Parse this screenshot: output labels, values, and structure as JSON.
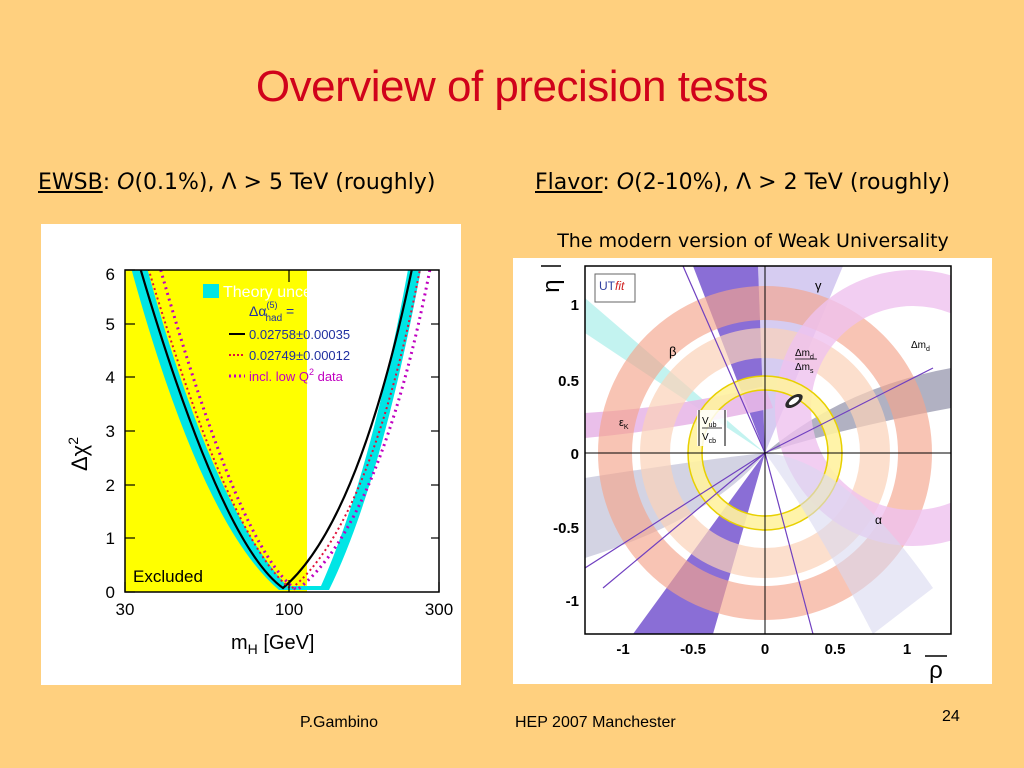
{
  "slide": {
    "title": "Overview of precision tests",
    "page_number": "24",
    "footer_author": "P.Gambino",
    "footer_event": "HEP 2007 Manchester"
  },
  "ewsb": {
    "key": "EWSB",
    "text_colon": ": ",
    "text_italic": "O",
    "text_rest": "(0.1%), Λ > 5 TeV (roughly)"
  },
  "flavor": {
    "key": "Flavor",
    "text_colon": ": ",
    "text_italic": "O",
    "text_rest": "(2-10%), Λ > 2 TeV (roughly)",
    "caption": "The modern version of Weak Universality"
  },
  "chi2_plot": {
    "legend_title": "Theory uncertainty",
    "alpha_sym": "Δα",
    "alpha_sup": "(5)",
    "alpha_sub": "had",
    "alpha_eq": " =",
    "line1": "0.02758±0.00035",
    "line2": "0.02749±0.00012",
    "line3_pre": "incl. low Q",
    "line3_sup": "2",
    "line3_post": " data",
    "excluded": "Excluded",
    "ylabel": "Δχ",
    "ylabel_sup": "2",
    "xlabel": "m",
    "xlabel_sub": "H",
    "xlabel_unit": " [GeV]",
    "yticks": [
      "0",
      "1",
      "2",
      "3",
      "4",
      "5",
      "6"
    ],
    "xticks": [
      "30",
      "100",
      "300"
    ],
    "colors": {
      "excluded": "#FFFF00",
      "band": "#00E5E5",
      "line1": "#000000",
      "line2": "#E0103A",
      "line3": "#C000C0",
      "legend_text": "#2030A0"
    }
  },
  "ut_plot": {
    "ylabel": "η",
    "xlabel": "ρ",
    "logo_a": "UT",
    "logo_b": "fit",
    "yticks": [
      "1",
      "0.5",
      "0",
      "-0.5",
      "-1"
    ],
    "xticks": [
      "-1",
      "-0.5",
      "0",
      "0.5",
      "1"
    ],
    "labels": {
      "gamma": "γ",
      "beta": "β",
      "dmd_over_dms_a": "Δm",
      "dmd_over_dms_sub_a": "d",
      "dmd_over_dms_b": "Δm",
      "dmd_over_dms_sub_b": "s",
      "dmd": "Δm",
      "dmd_sub": "d",
      "epsk": "ε",
      "epsk_sub": "K",
      "vub": "V",
      "vub_sub": "ub",
      "vcb": "V",
      "vcb_sub": "cb",
      "alpha": "α"
    }
  }
}
